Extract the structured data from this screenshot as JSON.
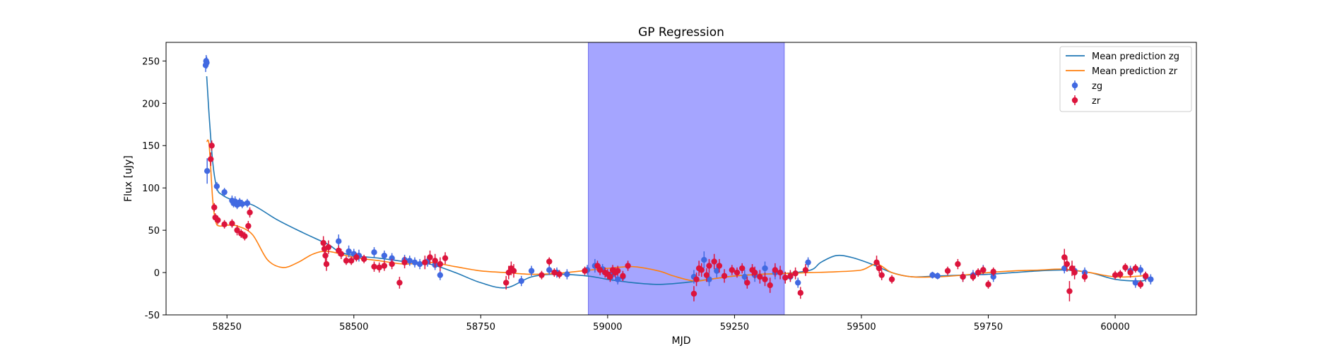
{
  "chart_data": {
    "type": "scatter",
    "title": "GP Regression",
    "xlabel": "MJD",
    "ylabel": "Flux [uJy]",
    "xlim": [
      58130,
      60160
    ],
    "ylim": [
      -50,
      272
    ],
    "xticks": [
      58250,
      58500,
      58750,
      59000,
      59250,
      59500,
      59750,
      60000
    ],
    "yticks": [
      -50,
      0,
      50,
      100,
      150,
      200,
      250
    ],
    "grid": false,
    "legend": {
      "placement": "top-right"
    },
    "shaded_region": {
      "x_start": 58962,
      "x_end": 59348,
      "color": "#a5a5ff"
    },
    "series": [
      {
        "name": "Mean prediction zg",
        "kind": "line",
        "color": "#1f77b4",
        "x": [
          58210,
          58215,
          58222,
          58230,
          58240,
          58260,
          58300,
          58350,
          58400,
          58450,
          58470,
          58500,
          58550,
          58600,
          58650,
          58700,
          58750,
          58800,
          58850,
          58900,
          58960,
          59000,
          59050,
          59100,
          59150,
          59200,
          59250,
          59300,
          59350,
          59400,
          59420,
          59450,
          59480,
          59520,
          59560,
          59600,
          59650,
          59700,
          59750,
          59800,
          59850,
          59900,
          59950,
          60000,
          60050,
          60060
        ],
        "y": [
          232,
          185,
          130,
          100,
          92,
          86,
          80,
          62,
          47,
          33,
          25,
          20,
          17,
          13,
          10,
          0,
          -12,
          -18,
          -5,
          -2,
          -4,
          -8,
          -12,
          -14,
          -12,
          -8,
          -4,
          -2,
          -1,
          3,
          12,
          20,
          18,
          10,
          0,
          -5,
          -4,
          -3,
          -2,
          0,
          2,
          3,
          0,
          -8,
          -10,
          -8
        ]
      },
      {
        "name": "Mean prediction zr",
        "kind": "line",
        "color": "#ff7f0e",
        "x": [
          58210,
          58215,
          58222,
          58228,
          58235,
          58250,
          58270,
          58300,
          58330,
          58360,
          58390,
          58420,
          58450,
          58500,
          58550,
          58600,
          58650,
          58700,
          58750,
          58800,
          58850,
          58900,
          58950,
          59000,
          59050,
          59100,
          59130,
          59170,
          59200,
          59250,
          59300,
          59350,
          59400,
          59450,
          59500,
          59530,
          59560,
          59600,
          59650,
          59700,
          59750,
          59800,
          59850,
          59900,
          59950,
          60000,
          60050,
          60060
        ],
        "y": [
          155,
          150,
          85,
          60,
          55,
          56,
          55,
          45,
          15,
          6,
          12,
          22,
          25,
          18,
          14,
          10,
          12,
          7,
          2,
          0,
          -2,
          -1,
          2,
          5,
          7,
          2,
          -4,
          -10,
          -8,
          -4,
          -2,
          -1,
          0,
          1,
          3,
          10,
          0,
          -5,
          -5,
          -3,
          0,
          2,
          3,
          4,
          0,
          -5,
          -4,
          -2
        ]
      },
      {
        "name": "zg",
        "kind": "errorbar",
        "color": "#4169e1",
        "x": [
          58208,
          58209,
          58210,
          58211,
          58230,
          58245,
          58260,
          58263,
          58266,
          58270,
          58275,
          58280,
          58290,
          58470,
          58490,
          58500,
          58510,
          58540,
          58560,
          58575,
          58600,
          58610,
          58620,
          58630,
          58645,
          58660,
          58670,
          58830,
          58850,
          58885,
          58900,
          58920,
          58960,
          58975,
          58990,
          59010,
          59020,
          59030,
          59170,
          59190,
          59200,
          59215,
          59270,
          59290,
          59310,
          59330,
          59360,
          59375,
          59395,
          59640,
          59650,
          59700,
          59720,
          59740,
          59760,
          59900,
          59920,
          59940,
          60030,
          60040,
          60050,
          60060,
          60070
        ],
        "y": [
          245,
          250,
          248,
          120,
          102,
          95,
          85,
          82,
          84,
          80,
          83,
          81,
          82,
          37,
          25,
          22,
          20,
          24,
          20,
          17,
          15,
          14,
          12,
          10,
          13,
          9,
          -3,
          -10,
          2,
          3,
          0,
          -2,
          3,
          8,
          4,
          -2,
          -8,
          -5,
          -5,
          15,
          -8,
          2,
          -5,
          -3,
          5,
          0,
          -5,
          -12,
          12,
          -3,
          -4,
          -5,
          -3,
          3,
          -5,
          5,
          2,
          0,
          2,
          -12,
          3,
          -5,
          -8
        ],
        "err": [
          8,
          7,
          7,
          15,
          5,
          5,
          6,
          5,
          6,
          5,
          5,
          5,
          5,
          8,
          7,
          6,
          7,
          6,
          6,
          6,
          6,
          6,
          6,
          6,
          6,
          6,
          6,
          6,
          6,
          6,
          6,
          6,
          6,
          8,
          6,
          8,
          6,
          6,
          8,
          10,
          8,
          8,
          8,
          8,
          8,
          8,
          6,
          6,
          6,
          4,
          4,
          6,
          6,
          6,
          6,
          6,
          6,
          6,
          6,
          6,
          6,
          6,
          6
        ]
      },
      {
        "name": "zr",
        "kind": "errorbar",
        "color": "#dc143c",
        "x": [
          58218,
          58220,
          58225,
          58227,
          58232,
          58245,
          58260,
          58270,
          58278,
          58285,
          58292,
          58295,
          58440,
          58442,
          58444,
          58446,
          58450,
          58470,
          58475,
          58485,
          58495,
          58505,
          58520,
          58540,
          58550,
          58560,
          58575,
          58590,
          58600,
          58640,
          58650,
          58660,
          58670,
          58680,
          58800,
          58805,
          58810,
          58815,
          58870,
          58885,
          58895,
          58905,
          58955,
          58980,
          58985,
          58995,
          59000,
          59005,
          59010,
          59015,
          59020,
          59030,
          59040,
          59170,
          59175,
          59180,
          59185,
          59195,
          59200,
          59210,
          59220,
          59230,
          59245,
          59255,
          59265,
          59275,
          59285,
          59290,
          59300,
          59310,
          59320,
          59330,
          59340,
          59350,
          59360,
          59370,
          59380,
          59390,
          59530,
          59535,
          59540,
          59560,
          59670,
          59690,
          59700,
          59720,
          59730,
          59740,
          59750,
          59760,
          59900,
          59905,
          59910,
          59915,
          59920,
          59940,
          60000,
          60010,
          60020,
          60030,
          60040,
          60050,
          60060
        ],
        "y": [
          134,
          150,
          77,
          65,
          62,
          57,
          58,
          50,
          46,
          43,
          55,
          71,
          35,
          28,
          20,
          10,
          30,
          26,
          22,
          14,
          14,
          18,
          16,
          7,
          6,
          8,
          10,
          -12,
          12,
          12,
          18,
          14,
          10,
          17,
          -12,
          0,
          5,
          2,
          -3,
          13,
          0,
          -2,
          2,
          8,
          3,
          0,
          -2,
          -5,
          3,
          0,
          2,
          -4,
          8,
          -25,
          -8,
          5,
          3,
          -3,
          8,
          13,
          8,
          -4,
          3,
          0,
          5,
          -12,
          3,
          0,
          -5,
          -8,
          -15,
          3,
          0,
          -6,
          -4,
          -1,
          -24,
          3,
          12,
          5,
          -3,
          -8,
          2,
          10,
          -5,
          -5,
          0,
          3,
          -14,
          1,
          18,
          10,
          -22,
          5,
          0,
          -5,
          -3,
          -2,
          6,
          0,
          5,
          -14,
          -4
        ],
        "err": [
          8,
          6,
          5,
          5,
          5,
          5,
          5,
          6,
          5,
          5,
          6,
          6,
          8,
          8,
          8,
          8,
          8,
          6,
          6,
          5,
          5,
          5,
          5,
          6,
          6,
          6,
          6,
          7,
          7,
          8,
          8,
          8,
          8,
          7,
          8,
          8,
          8,
          8,
          5,
          5,
          5,
          5,
          5,
          6,
          6,
          6,
          6,
          6,
          6,
          6,
          6,
          6,
          6,
          9,
          8,
          9,
          8,
          8,
          8,
          9,
          8,
          8,
          6,
          6,
          6,
          7,
          7,
          7,
          8,
          8,
          9,
          8,
          8,
          7,
          7,
          7,
          7,
          7,
          8,
          6,
          6,
          5,
          5,
          6,
          6,
          5,
          5,
          5,
          5,
          5,
          10,
          9,
          12,
          9,
          8,
          6,
          5,
          5,
          5,
          6,
          5,
          5,
          5
        ]
      }
    ]
  }
}
